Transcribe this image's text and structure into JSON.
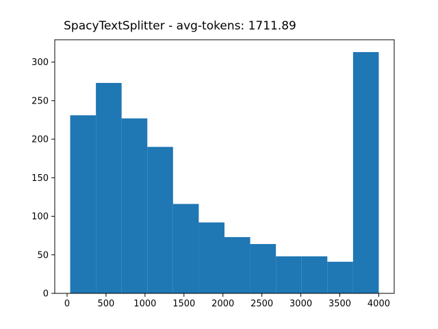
{
  "chart_data": {
    "type": "bar",
    "title": "SpacyTextSplitter - avg-tokens: 1711.89",
    "xlabel": "",
    "ylabel": "",
    "bins": [
      {
        "x0": 40,
        "x1": 370,
        "count": 231
      },
      {
        "x0": 370,
        "x1": 700,
        "count": 273
      },
      {
        "x0": 700,
        "x1": 1030,
        "count": 227
      },
      {
        "x0": 1030,
        "x1": 1360,
        "count": 190
      },
      {
        "x0": 1360,
        "x1": 1690,
        "count": 116
      },
      {
        "x0": 1690,
        "x1": 2020,
        "count": 92
      },
      {
        "x0": 2020,
        "x1": 2350,
        "count": 73
      },
      {
        "x0": 2350,
        "x1": 2680,
        "count": 64
      },
      {
        "x0": 2680,
        "x1": 3010,
        "count": 48
      },
      {
        "x0": 3010,
        "x1": 3340,
        "count": 48
      },
      {
        "x0": 3340,
        "x1": 3670,
        "count": 41
      },
      {
        "x0": 3670,
        "x1": 4000,
        "count": 313
      }
    ],
    "xlim": [
      -158,
      4198
    ],
    "ylim": [
      0,
      329
    ],
    "xticks": [
      0,
      500,
      1000,
      1500,
      2000,
      2500,
      3000,
      3500,
      4000
    ],
    "yticks": [
      0,
      50,
      100,
      150,
      200,
      250,
      300
    ],
    "grid": false,
    "legend": "none",
    "bar_color": "#1f77b4"
  }
}
